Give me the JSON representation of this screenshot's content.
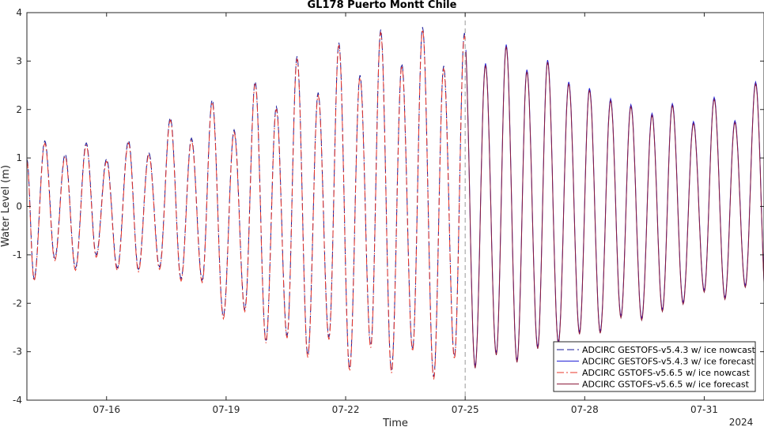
{
  "chart_data": {
    "type": "line",
    "title": "GL178 Puerto Montt Chile",
    "xlabel": "Time",
    "ylabel": "Water Level (m)",
    "year_label": "2024",
    "x_range": [
      "2024-07-14 00:00",
      "2024-08-01 12:00"
    ],
    "xlim": [
      0,
      18.5
    ],
    "ylim": [
      -4,
      4
    ],
    "x_ticks": [
      {
        "value": 2.0,
        "label": "07-16"
      },
      {
        "value": 5.0,
        "label": "07-19"
      },
      {
        "value": 8.0,
        "label": "07-22"
      },
      {
        "value": 11.0,
        "label": "07-25"
      },
      {
        "value": 14.0,
        "label": "07-28"
      },
      {
        "value": 17.0,
        "label": "07-31"
      }
    ],
    "y_ticks": [
      {
        "value": -4,
        "label": "-4"
      },
      {
        "value": -3,
        "label": "-3"
      },
      {
        "value": -2,
        "label": "-2"
      },
      {
        "value": -1,
        "label": "-1"
      },
      {
        "value": 0,
        "label": "0"
      },
      {
        "value": 1,
        "label": "1"
      },
      {
        "value": 2,
        "label": "2"
      },
      {
        "value": 3,
        "label": "3"
      },
      {
        "value": 4,
        "label": "4"
      }
    ],
    "nowcast_forecast_split": "2024-07-25 00:00",
    "grid": false,
    "legend_position": "bottom-right",
    "extrema": [
      [
        0.18,
        -1.52
      ],
      [
        0.45,
        1.32
      ],
      [
        0.7,
        -1.1
      ],
      [
        0.96,
        1.05
      ],
      [
        1.22,
        -1.3
      ],
      [
        1.49,
        1.28
      ],
      [
        1.74,
        -1.03
      ],
      [
        2.0,
        0.95
      ],
      [
        2.27,
        -1.3
      ],
      [
        2.55,
        1.33
      ],
      [
        2.8,
        -1.33
      ],
      [
        3.06,
        1.08
      ],
      [
        3.33,
        -1.28
      ],
      [
        3.6,
        1.8
      ],
      [
        3.87,
        -1.52
      ],
      [
        4.13,
        1.38
      ],
      [
        4.4,
        -1.55
      ],
      [
        4.65,
        2.17
      ],
      [
        4.93,
        -2.3
      ],
      [
        5.2,
        1.55
      ],
      [
        5.47,
        -2.15
      ],
      [
        5.73,
        2.55
      ],
      [
        6.0,
        -2.8
      ],
      [
        6.26,
        2.03
      ],
      [
        6.53,
        -2.7
      ],
      [
        6.78,
        3.07
      ],
      [
        7.05,
        -3.1
      ],
      [
        7.31,
        2.32
      ],
      [
        7.58,
        -2.73
      ],
      [
        7.83,
        3.35
      ],
      [
        8.1,
        -3.38
      ],
      [
        8.36,
        2.68
      ],
      [
        8.63,
        -2.9
      ],
      [
        8.88,
        3.62
      ],
      [
        9.15,
        -3.42
      ],
      [
        9.41,
        2.92
      ],
      [
        9.68,
        -2.97
      ],
      [
        9.93,
        3.67
      ],
      [
        10.21,
        -3.55
      ],
      [
        10.46,
        2.87
      ],
      [
        10.73,
        -3.13
      ],
      [
        10.98,
        3.55
      ],
      [
        11.25,
        -3.32
      ],
      [
        11.51,
        2.93
      ],
      [
        11.78,
        -3.05
      ],
      [
        12.03,
        3.32
      ],
      [
        12.3,
        -3.2
      ],
      [
        12.55,
        2.8
      ],
      [
        12.82,
        -2.92
      ],
      [
        13.07,
        3.0
      ],
      [
        13.34,
        -2.82
      ],
      [
        13.6,
        2.55
      ],
      [
        13.87,
        -2.62
      ],
      [
        14.12,
        2.42
      ],
      [
        14.39,
        -2.6
      ],
      [
        14.65,
        2.2
      ],
      [
        14.91,
        -2.28
      ],
      [
        15.16,
        2.08
      ],
      [
        15.43,
        -2.33
      ],
      [
        15.69,
        1.9
      ],
      [
        15.95,
        -2.15
      ],
      [
        16.2,
        2.1
      ],
      [
        16.47,
        -2.0
      ],
      [
        16.73,
        1.73
      ],
      [
        17.0,
        -1.75
      ],
      [
        17.25,
        2.23
      ],
      [
        17.52,
        -1.9
      ],
      [
        17.77,
        1.75
      ],
      [
        18.03,
        -1.65
      ],
      [
        18.29,
        2.55
      ],
      [
        18.56,
        -2.1
      ]
    ],
    "series": [
      {
        "name": "ADCIRC GESTOFS-v5.4.3 w/ ice nowcast",
        "color": "#1a1a99",
        "dash": "dashed",
        "segment": "nowcast",
        "offset_m": 0.03
      },
      {
        "name": "ADCIRC GESTOFS-v5.4.3 w/ ice forecast",
        "color": "#1f1fd6",
        "dash": "solid",
        "segment": "forecast",
        "offset_m": 0.02
      },
      {
        "name": "ADCIRC GSTOFS-v5.6.5 w/ ice nowcast",
        "color": "#e8372a",
        "dash": "dashdot",
        "segment": "nowcast",
        "offset_m": -0.02
      },
      {
        "name": "ADCIRC GSTOFS-v5.6.5 w/ ice forecast",
        "color": "#8b1a3a",
        "dash": "solid",
        "segment": "forecast",
        "offset_m": -0.02
      }
    ]
  }
}
